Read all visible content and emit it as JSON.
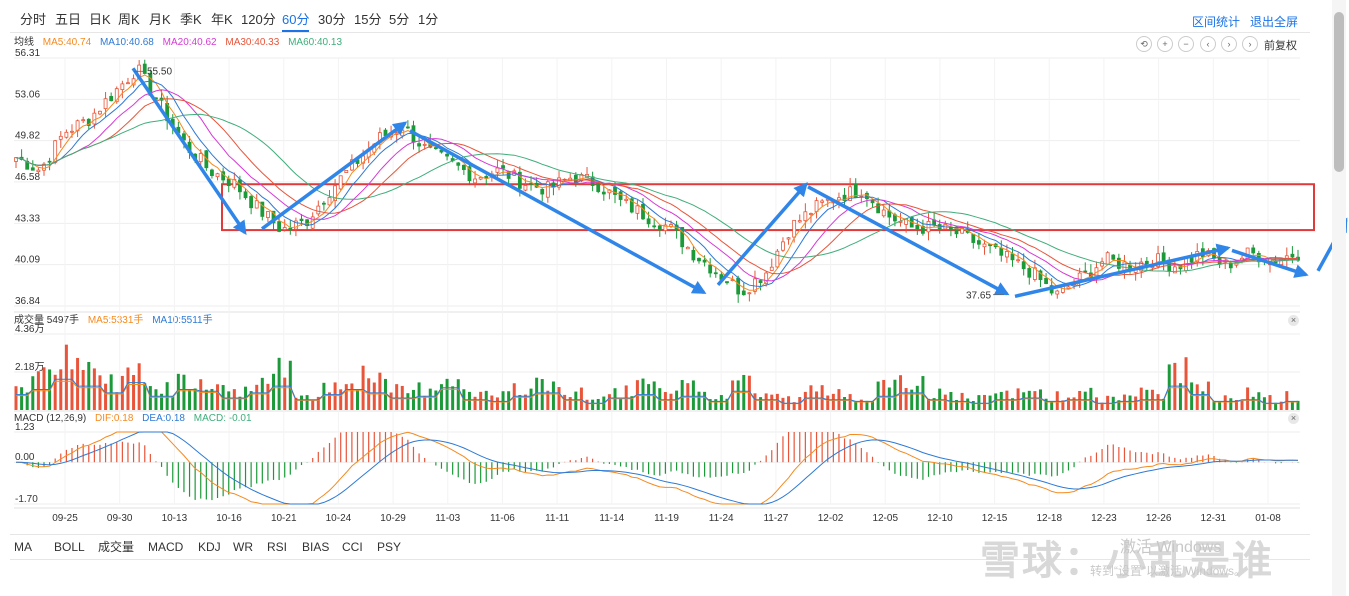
{
  "periods": [
    "分时",
    "五日",
    "日K",
    "周K",
    "月K",
    "季K",
    "年K",
    "120分",
    "60分",
    "30分",
    "15分",
    "5分",
    "1分"
  ],
  "active_period": "60分",
  "top_links": {
    "range_stats": "区间统计",
    "exit_fullscreen": "退出全屏"
  },
  "price_indicator": {
    "title": "均线",
    "items": [
      {
        "label": "MA5:40.74",
        "color": "#f58a1f"
      },
      {
        "label": "MA10:40.68",
        "color": "#2d7ad6"
      },
      {
        "label": "MA20:40.62",
        "color": "#d63ad6"
      },
      {
        "label": "MA30:40.33",
        "color": "#e8553a"
      },
      {
        "label": "MA60:40.13",
        "color": "#3fae7a"
      }
    ]
  },
  "controls": [
    "⟲",
    "+",
    "−",
    "‹",
    "›",
    "›"
  ],
  "adjust_label": "前复权",
  "volume_indicator": {
    "title": "成交量 5497手",
    "items": [
      {
        "label": "MA5:5331手",
        "color": "#f58a1f"
      },
      {
        "label": "MA10:5511手",
        "color": "#2d7ad6"
      }
    ]
  },
  "macd_indicator": {
    "title": "MACD (12,26,9)",
    "items": [
      {
        "label": "DIF:0.18",
        "color": "#f58a1f"
      },
      {
        "label": "DEA:0.18",
        "color": "#2d7ad6"
      },
      {
        "label": "MACD: -0.01",
        "color": "#3fae7a"
      }
    ]
  },
  "bottom_tabs": [
    "MA",
    "BOLL",
    "成交量",
    "MACD",
    "KDJ",
    "WR",
    "RSI",
    "BIAS",
    "CCI",
    "PSY"
  ],
  "bottom_active": [
    "MA",
    "成交量",
    "MACD"
  ],
  "watermark": {
    "brand": "雪球：小乱是谁",
    "win_title": "激活 Windows",
    "win_sub": "转到“设置”以激活 Windows。"
  },
  "colors": {
    "up": "#e8553a",
    "down": "#1c9a3a",
    "accent": "#1a73e8",
    "arrow": "#2f86e8",
    "box": "#e03a3a"
  },
  "chart_data": {
    "type": "candlestick",
    "price_ticks": [
      56.31,
      53.06,
      49.82,
      46.58,
      43.33,
      40.09,
      36.84
    ],
    "price_range": [
      36.84,
      56.31
    ],
    "volume_ticks": [
      "4.36万",
      "2.18万"
    ],
    "volume_range": [
      0,
      43600
    ],
    "macd_ticks": [
      1.23,
      "0.00",
      -1.7
    ],
    "macd_range": [
      -1.7,
      1.23
    ],
    "x_labels": [
      "09-25",
      "09-30",
      "10-13",
      "10-16",
      "10-21",
      "10-24",
      "10-29",
      "11-03",
      "11-06",
      "11-11",
      "11-14",
      "11-19",
      "11-24",
      "11-27",
      "12-02",
      "12-05",
      "12-10",
      "12-15",
      "12-18",
      "12-23",
      "12-26",
      "12-31",
      "01-08"
    ],
    "annotations": {
      "high_label": "55.50",
      "high_value": 55.5,
      "low_label": "37.65",
      "low_value": 37.65
    },
    "box_zone": [
      42.8,
      46.4
    ],
    "price_anchors": [
      48.5,
      47.5,
      50.5,
      51.5,
      53.5,
      55.5,
      52.5,
      49.5,
      47.5,
      46.5,
      44.5,
      42.8,
      43.5,
      46.0,
      48.0,
      50.0,
      51.0,
      49.0,
      48.0,
      47.0,
      47.5,
      46.5,
      46.0,
      47.0,
      46.5,
      45.0,
      44.0,
      43.0,
      41.0,
      39.5,
      38.0,
      39.5,
      43.0,
      44.5,
      45.5,
      46.0,
      44.0,
      43.0,
      43.0,
      42.5,
      41.5,
      40.5,
      39.5,
      37.65,
      39.0,
      40.5,
      40.0,
      40.5,
      40.0,
      41.0,
      40.0,
      41.0,
      40.5,
      41.0
    ],
    "volume_pattern": [
      0.45,
      0.6,
      0.9,
      0.7,
      0.5,
      0.8,
      0.4,
      0.6,
      0.55,
      0.35,
      0.5,
      0.7,
      0.3,
      0.45,
      0.6,
      0.5,
      0.35,
      0.4,
      0.65,
      0.3,
      0.25,
      0.4,
      0.5,
      0.3,
      0.2,
      0.35,
      0.45,
      0.3,
      0.4,
      0.25,
      0.55,
      0.3,
      0.2,
      0.35,
      0.3,
      0.25,
      0.4,
      0.5,
      0.3,
      0.25,
      0.2,
      0.3,
      0.35,
      0.25,
      0.3,
      0.2,
      0.25,
      0.3,
      0.7,
      0.45,
      0.25,
      0.3,
      0.2,
      0.25
    ],
    "ma_series": [
      {
        "name": "MA5",
        "color": "#f58a1f",
        "lag": 3
      },
      {
        "name": "MA10",
        "color": "#2d7ad6",
        "lag": 6
      },
      {
        "name": "MA20",
        "color": "#d63ad6",
        "lag": 11
      },
      {
        "name": "MA30",
        "color": "#e8553a",
        "lag": 16
      },
      {
        "name": "MA60",
        "color": "#3fae7a",
        "lag": 26
      }
    ]
  }
}
